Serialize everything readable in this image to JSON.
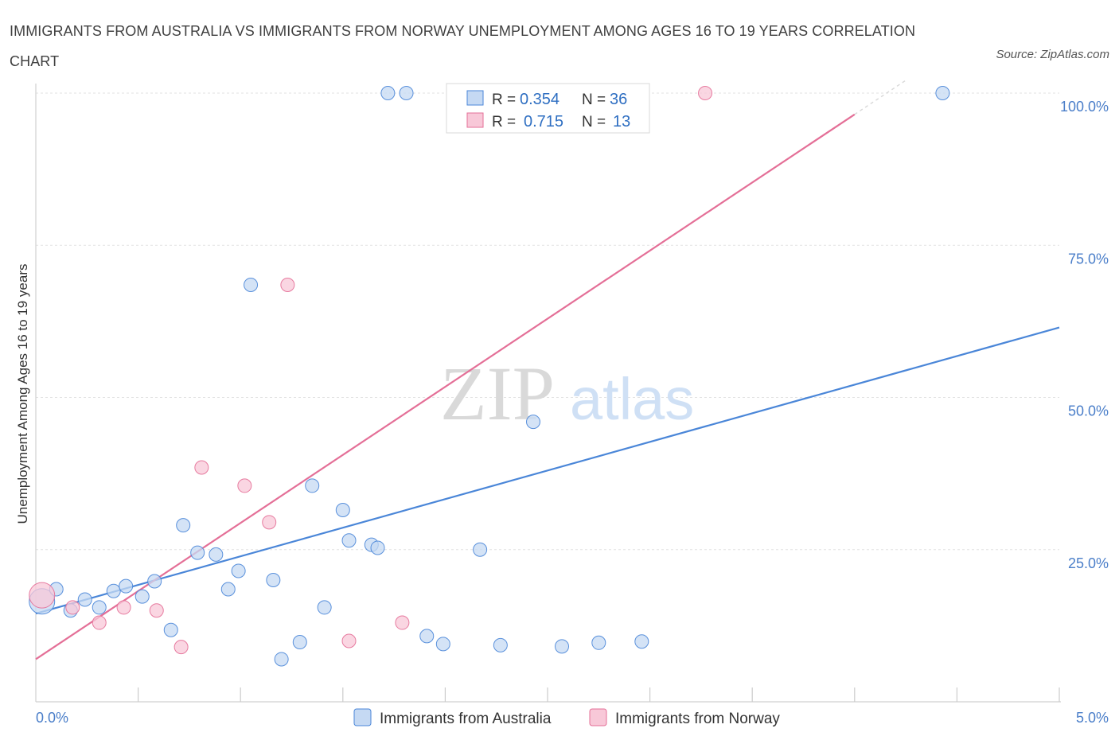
{
  "header": {
    "title": "IMMIGRANTS FROM AUSTRALIA VS IMMIGRANTS FROM NORWAY UNEMPLOYMENT AMONG AGES 16 TO 19 YEARS CORRELATION CHART",
    "source": "Source: ZipAtlas.com"
  },
  "watermark": {
    "zip": "ZIP",
    "atlas": "atlas"
  },
  "legend_top": {
    "rows": [
      {
        "r_label": "R = ",
        "r_value": "0.354",
        "n_label": "N = ",
        "n_value": "36"
      },
      {
        "r_label": "R = ",
        "r_value": "0.715",
        "n_label": "N = ",
        "n_value": "13"
      }
    ]
  },
  "chart_data": {
    "type": "scatter",
    "title": "IMMIGRANTS FROM AUSTRALIA VS IMMIGRANTS FROM NORWAY UNEMPLOYMENT AMONG AGES 16 TO 19 YEARS CORRELATION CHART",
    "xlabel": "",
    "ylabel": "Unemployment Among Ages 16 to 19 years",
    "xlim": [
      0,
      5
    ],
    "ylim": [
      0,
      100
    ],
    "x_tick_labels": [
      "0.0%",
      "5.0%"
    ],
    "y_tick_labels": [
      "100.0%",
      "75.0%",
      "50.0%",
      "25.0%"
    ],
    "y_ticks": [
      100,
      75,
      50,
      25
    ],
    "legend_position": "bottom",
    "series": [
      {
        "name": "Immigrants from Australia",
        "color": "#4a86d8",
        "fill": "#c5d9f3",
        "R": 0.354,
        "N": 36,
        "trend": {
          "x0": 0.0,
          "y0": 14.5,
          "x1": 5.0,
          "y1": 61.5
        },
        "points": [
          {
            "x": 0.03,
            "y": 16.5,
            "big": true
          },
          {
            "x": 0.1,
            "y": 18.5
          },
          {
            "x": 0.17,
            "y": 15.0
          },
          {
            "x": 0.24,
            "y": 16.8
          },
          {
            "x": 0.31,
            "y": 15.5
          },
          {
            "x": 0.38,
            "y": 18.2
          },
          {
            "x": 0.44,
            "y": 19.0
          },
          {
            "x": 0.52,
            "y": 17.3
          },
          {
            "x": 0.58,
            "y": 19.8
          },
          {
            "x": 0.66,
            "y": 11.8
          },
          {
            "x": 0.72,
            "y": 29.0
          },
          {
            "x": 0.79,
            "y": 24.5
          },
          {
            "x": 0.88,
            "y": 24.2
          },
          {
            "x": 0.94,
            "y": 18.5
          },
          {
            "x": 0.99,
            "y": 21.5
          },
          {
            "x": 1.05,
            "y": 68.5
          },
          {
            "x": 1.16,
            "y": 20.0
          },
          {
            "x": 1.2,
            "y": 7.0
          },
          {
            "x": 1.29,
            "y": 9.8
          },
          {
            "x": 1.35,
            "y": 35.5
          },
          {
            "x": 1.41,
            "y": 15.5
          },
          {
            "x": 1.5,
            "y": 31.5
          },
          {
            "x": 1.53,
            "y": 26.5
          },
          {
            "x": 1.64,
            "y": 25.8
          },
          {
            "x": 1.67,
            "y": 25.3
          },
          {
            "x": 1.72,
            "y": 100.0
          },
          {
            "x": 1.81,
            "y": 100.0
          },
          {
            "x": 1.91,
            "y": 10.8
          },
          {
            "x": 1.99,
            "y": 9.5
          },
          {
            "x": 2.17,
            "y": 25.0
          },
          {
            "x": 2.27,
            "y": 9.3
          },
          {
            "x": 2.43,
            "y": 46.0
          },
          {
            "x": 2.57,
            "y": 9.1
          },
          {
            "x": 2.75,
            "y": 9.7
          },
          {
            "x": 2.96,
            "y": 9.9
          },
          {
            "x": 4.43,
            "y": 100.0
          }
        ]
      },
      {
        "name": "Immigrants from Norway",
        "color": "#e46f97",
        "fill": "#f8c8d8",
        "R": 0.715,
        "N": 13,
        "trend": {
          "x0": 0.0,
          "y0": 7.0,
          "x1": 4.0,
          "y1": 96.5
        },
        "points": [
          {
            "x": 0.03,
            "y": 17.5,
            "big": true
          },
          {
            "x": 0.18,
            "y": 15.5
          },
          {
            "x": 0.31,
            "y": 13.0
          },
          {
            "x": 0.43,
            "y": 15.5
          },
          {
            "x": 0.59,
            "y": 15.0
          },
          {
            "x": 0.71,
            "y": 9.0
          },
          {
            "x": 0.81,
            "y": 38.5
          },
          {
            "x": 1.02,
            "y": 35.5
          },
          {
            "x": 1.14,
            "y": 29.5
          },
          {
            "x": 1.23,
            "y": 68.5
          },
          {
            "x": 1.53,
            "y": 10.0
          },
          {
            "x": 1.79,
            "y": 13.0
          },
          {
            "x": 3.27,
            "y": 100.0
          }
        ]
      }
    ]
  }
}
